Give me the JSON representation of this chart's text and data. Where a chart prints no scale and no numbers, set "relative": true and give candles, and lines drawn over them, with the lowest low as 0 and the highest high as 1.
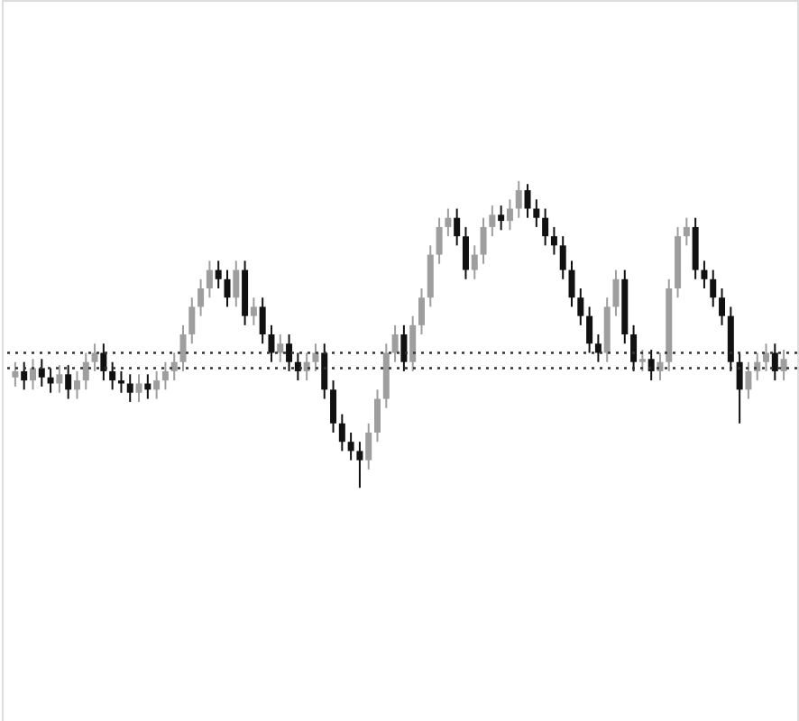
{
  "chart_data": {
    "type": "candlestick",
    "relative": true,
    "categories": [
      null,
      null,
      null,
      null,
      null,
      null,
      null,
      null,
      null,
      null,
      null,
      null,
      null,
      null,
      null,
      null,
      null,
      null,
      null,
      null,
      null,
      null,
      null,
      null,
      null,
      null,
      null,
      null,
      null,
      null,
      null,
      null,
      null,
      null,
      null,
      null,
      null,
      null,
      null,
      null,
      null,
      null,
      null,
      null,
      null,
      null,
      null,
      null,
      null,
      null,
      null,
      null,
      null,
      null,
      null,
      null,
      null,
      null,
      null,
      null,
      null,
      null,
      null,
      null,
      null,
      null,
      null,
      null,
      null,
      null,
      null,
      null,
      null,
      null,
      null,
      null,
      null,
      null,
      null,
      null,
      null,
      null,
      null,
      null,
      null,
      null,
      null,
      null
    ],
    "ohlc": [
      [
        0.36,
        0.41,
        0.33,
        0.38
      ],
      [
        0.38,
        0.41,
        0.32,
        0.35
      ],
      [
        0.35,
        0.42,
        0.32,
        0.39
      ],
      [
        0.39,
        0.42,
        0.33,
        0.36
      ],
      [
        0.36,
        0.39,
        0.31,
        0.34
      ],
      [
        0.34,
        0.4,
        0.31,
        0.37
      ],
      [
        0.37,
        0.4,
        0.29,
        0.32
      ],
      [
        0.32,
        0.38,
        0.29,
        0.35
      ],
      [
        0.35,
        0.44,
        0.32,
        0.41
      ],
      [
        0.41,
        0.47,
        0.38,
        0.44
      ],
      [
        0.44,
        0.47,
        0.35,
        0.38
      ],
      [
        0.38,
        0.41,
        0.32,
        0.35
      ],
      [
        0.35,
        0.38,
        0.31,
        0.34
      ],
      [
        0.34,
        0.37,
        0.28,
        0.31
      ],
      [
        0.31,
        0.37,
        0.28,
        0.34
      ],
      [
        0.34,
        0.37,
        0.29,
        0.32
      ],
      [
        0.32,
        0.38,
        0.29,
        0.35
      ],
      [
        0.35,
        0.41,
        0.32,
        0.38
      ],
      [
        0.38,
        0.44,
        0.35,
        0.41
      ],
      [
        0.41,
        0.53,
        0.38,
        0.5
      ],
      [
        0.5,
        0.62,
        0.47,
        0.59
      ],
      [
        0.59,
        0.68,
        0.56,
        0.65
      ],
      [
        0.65,
        0.74,
        0.62,
        0.71
      ],
      [
        0.71,
        0.74,
        0.65,
        0.68
      ],
      [
        0.68,
        0.71,
        0.59,
        0.62
      ],
      [
        0.62,
        0.74,
        0.59,
        0.71
      ],
      [
        0.71,
        0.74,
        0.53,
        0.56
      ],
      [
        0.56,
        0.62,
        0.53,
        0.59
      ],
      [
        0.59,
        0.62,
        0.47,
        0.5
      ],
      [
        0.5,
        0.53,
        0.41,
        0.44
      ],
      [
        0.44,
        0.5,
        0.41,
        0.47
      ],
      [
        0.47,
        0.5,
        0.38,
        0.41
      ],
      [
        0.41,
        0.44,
        0.35,
        0.38
      ],
      [
        0.38,
        0.44,
        0.35,
        0.41
      ],
      [
        0.41,
        0.47,
        0.38,
        0.44
      ],
      [
        0.44,
        0.47,
        0.29,
        0.32
      ],
      [
        0.32,
        0.35,
        0.18,
        0.21
      ],
      [
        0.21,
        0.24,
        0.12,
        0.15
      ],
      [
        0.15,
        0.18,
        0.09,
        0.12
      ],
      [
        0.12,
        0.15,
        0.0,
        0.09
      ],
      [
        0.09,
        0.21,
        0.06,
        0.18
      ],
      [
        0.18,
        0.32,
        0.15,
        0.29
      ],
      [
        0.29,
        0.47,
        0.26,
        0.44
      ],
      [
        0.44,
        0.53,
        0.41,
        0.5
      ],
      [
        0.5,
        0.53,
        0.38,
        0.41
      ],
      [
        0.41,
        0.56,
        0.38,
        0.53
      ],
      [
        0.53,
        0.65,
        0.5,
        0.62
      ],
      [
        0.62,
        0.79,
        0.59,
        0.76
      ],
      [
        0.76,
        0.88,
        0.73,
        0.85
      ],
      [
        0.85,
        0.91,
        0.82,
        0.88
      ],
      [
        0.88,
        0.91,
        0.79,
        0.82
      ],
      [
        0.82,
        0.85,
        0.68,
        0.71
      ],
      [
        0.71,
        0.79,
        0.68,
        0.76
      ],
      [
        0.76,
        0.88,
        0.73,
        0.85
      ],
      [
        0.85,
        0.92,
        0.82,
        0.89
      ],
      [
        0.89,
        0.92,
        0.84,
        0.87
      ],
      [
        0.87,
        0.94,
        0.84,
        0.91
      ],
      [
        0.91,
        1.0,
        0.88,
        0.97
      ],
      [
        0.97,
        0.99,
        0.88,
        0.91
      ],
      [
        0.91,
        0.94,
        0.85,
        0.88
      ],
      [
        0.88,
        0.91,
        0.79,
        0.82
      ],
      [
        0.82,
        0.85,
        0.76,
        0.79
      ],
      [
        0.79,
        0.82,
        0.68,
        0.71
      ],
      [
        0.71,
        0.74,
        0.59,
        0.62
      ],
      [
        0.62,
        0.65,
        0.53,
        0.56
      ],
      [
        0.56,
        0.59,
        0.44,
        0.47
      ],
      [
        0.47,
        0.5,
        0.41,
        0.44
      ],
      [
        0.44,
        0.62,
        0.41,
        0.59
      ],
      [
        0.59,
        0.71,
        0.56,
        0.68
      ],
      [
        0.68,
        0.71,
        0.47,
        0.5
      ],
      [
        0.5,
        0.53,
        0.38,
        0.41
      ],
      [
        0.41,
        0.45,
        0.38,
        0.42
      ],
      [
        0.42,
        0.45,
        0.35,
        0.38
      ],
      [
        0.38,
        0.44,
        0.35,
        0.41
      ],
      [
        0.41,
        0.68,
        0.38,
        0.65
      ],
      [
        0.65,
        0.85,
        0.62,
        0.82
      ],
      [
        0.82,
        0.88,
        0.79,
        0.85
      ],
      [
        0.85,
        0.88,
        0.68,
        0.71
      ],
      [
        0.71,
        0.74,
        0.65,
        0.68
      ],
      [
        0.68,
        0.71,
        0.59,
        0.62
      ],
      [
        0.62,
        0.65,
        0.53,
        0.56
      ],
      [
        0.56,
        0.59,
        0.38,
        0.41
      ],
      [
        0.41,
        0.44,
        0.21,
        0.32
      ],
      [
        0.32,
        0.41,
        0.29,
        0.38
      ],
      [
        0.38,
        0.44,
        0.35,
        0.41
      ],
      [
        0.41,
        0.47,
        0.38,
        0.44
      ],
      [
        0.44,
        0.47,
        0.35,
        0.38
      ],
      [
        0.38,
        0.45,
        0.35,
        0.42
      ]
    ],
    "colors": [
      "#9e9e9e",
      "#111111",
      "#9e9e9e",
      "#111111",
      "#111111",
      "#9e9e9e",
      "#111111",
      "#9e9e9e",
      "#9e9e9e",
      "#9e9e9e",
      "#111111",
      "#111111",
      "#111111",
      "#111111",
      "#9e9e9e",
      "#111111",
      "#9e9e9e",
      "#9e9e9e",
      "#9e9e9e",
      "#9e9e9e",
      "#9e9e9e",
      "#9e9e9e",
      "#9e9e9e",
      "#111111",
      "#111111",
      "#9e9e9e",
      "#111111",
      "#9e9e9e",
      "#111111",
      "#111111",
      "#9e9e9e",
      "#111111",
      "#111111",
      "#9e9e9e",
      "#9e9e9e",
      "#111111",
      "#111111",
      "#111111",
      "#111111",
      "#111111",
      "#9e9e9e",
      "#9e9e9e",
      "#9e9e9e",
      "#9e9e9e",
      "#111111",
      "#9e9e9e",
      "#9e9e9e",
      "#9e9e9e",
      "#9e9e9e",
      "#9e9e9e",
      "#111111",
      "#111111",
      "#9e9e9e",
      "#9e9e9e",
      "#9e9e9e",
      "#111111",
      "#9e9e9e",
      "#9e9e9e",
      "#111111",
      "#111111",
      "#111111",
      "#111111",
      "#111111",
      "#111111",
      "#111111",
      "#111111",
      "#111111",
      "#9e9e9e",
      "#9e9e9e",
      "#111111",
      "#111111",
      "#9e9e9e",
      "#111111",
      "#9e9e9e",
      "#9e9e9e",
      "#9e9e9e",
      "#9e9e9e",
      "#111111",
      "#111111",
      "#111111",
      "#111111",
      "#111111",
      "#111111",
      "#9e9e9e",
      "#9e9e9e",
      "#9e9e9e",
      "#111111",
      "#9e9e9e"
    ],
    "ref_lines": [
      {
        "axis": "y",
        "value": 0.44,
        "color": "#333333",
        "line_style": "dotted"
      },
      {
        "axis": "y",
        "value": 0.39,
        "color": "#333333",
        "line_style": "dotted"
      }
    ]
  }
}
